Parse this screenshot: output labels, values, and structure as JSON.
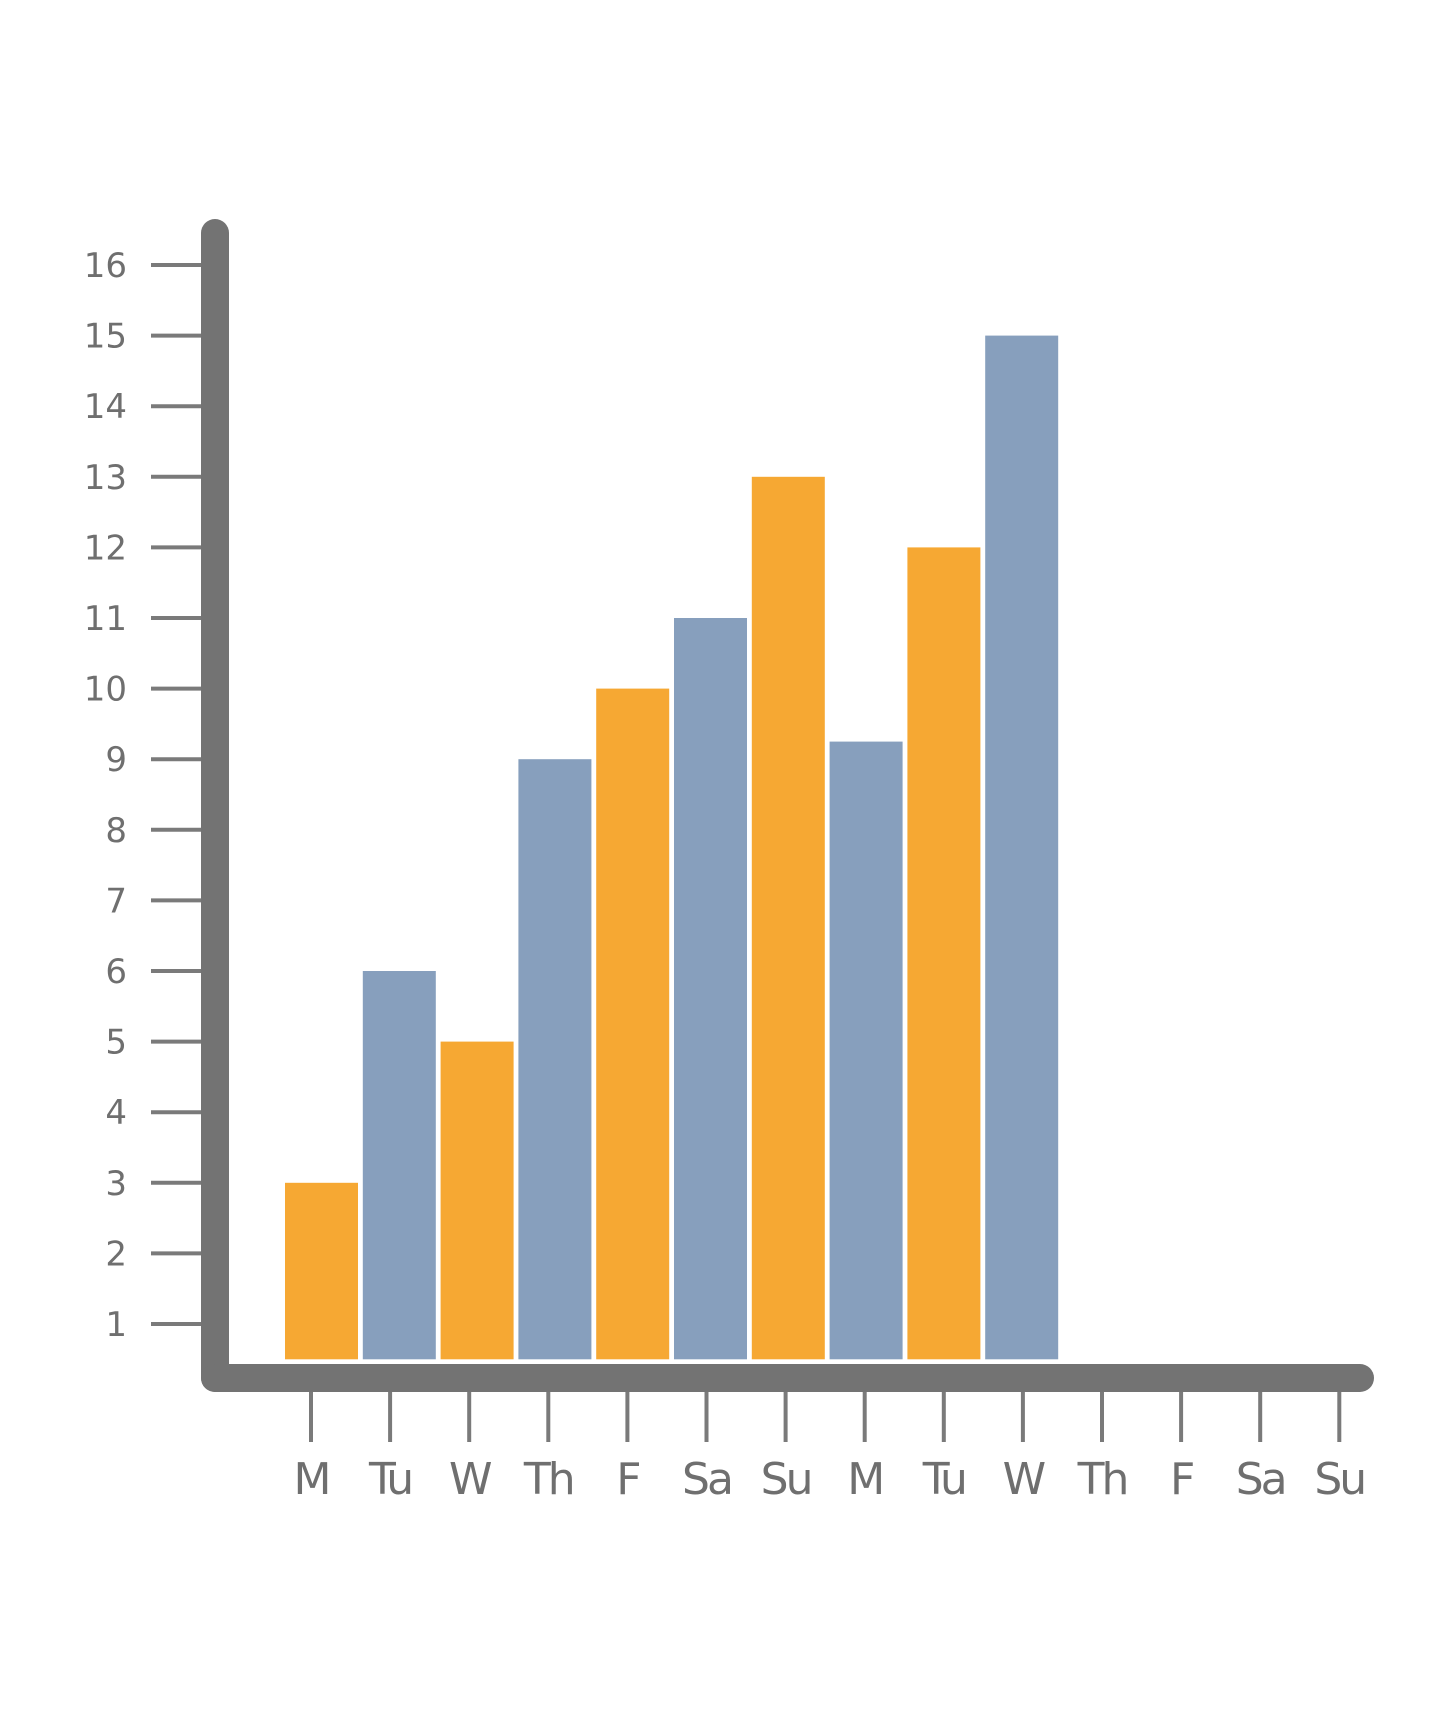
{
  "chart_data": {
    "type": "bar",
    "categories": [
      "M",
      "Tu",
      "W",
      "Th",
      "F",
      "Sa",
      "Su",
      "M",
      "Tu",
      "W",
      "Th",
      "F",
      "Sa",
      "Su"
    ],
    "values": [
      3,
      6,
      5,
      9,
      10,
      11,
      13,
      9.25,
      12,
      15,
      null,
      null,
      null,
      null
    ],
    "bar_colors": [
      "#f6a833",
      "#879fbd",
      "#f6a833",
      "#879fbd",
      "#f6a833",
      "#879fbd",
      "#f6a833",
      "#879fbd",
      "#f6a833",
      "#879fbd"
    ],
    "yticks": [
      1,
      2,
      3,
      4,
      5,
      6,
      7,
      8,
      9,
      10,
      11,
      12,
      13,
      14,
      15,
      16
    ],
    "ylim": [
      0.5,
      16
    ],
    "grid": false,
    "legend": "none"
  },
  "colors": {
    "axis": "#737373",
    "tick": "#7a7a7a",
    "text": "#6f6f6f",
    "orange": "#f6a833",
    "blue": "#879fbd"
  }
}
